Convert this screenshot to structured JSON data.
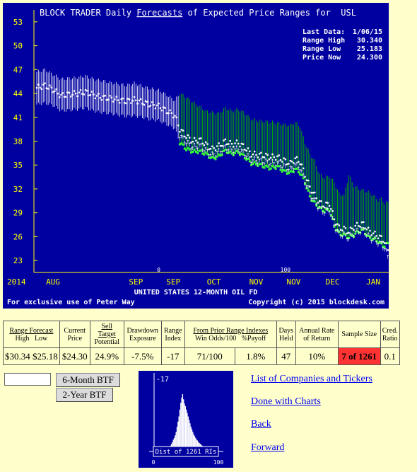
{
  "chart_data": [
    {
      "type": "range",
      "title_prefix": "BLOCK TRADER Daily ",
      "title_link": "Forecasts",
      "title_suffix": " of Expected Price Ranges for  USL",
      "xlabel": "UNITED STATES 12-MONTH OIL FD",
      "ylim": [
        21.5,
        54.5
      ],
      "yticks": [
        23,
        26,
        29,
        32,
        35,
        38,
        41,
        44,
        47,
        50,
        53
      ],
      "x_labels": [
        {
          "label": "2014",
          "x": 0
        },
        {
          "label": "AUG",
          "x": 10
        },
        {
          "label": "SEP",
          "x": 61
        },
        {
          "label": "SEP",
          "x": 84
        },
        {
          "label": "OCT",
          "x": 109
        },
        {
          "label": "NOV",
          "x": 135
        },
        {
          "label": "NOV",
          "x": 158
        },
        {
          "label": "DEC",
          "x": 182
        },
        {
          "label": "JAN",
          "x": 207
        }
      ],
      "volume_marks": [
        {
          "label": "0",
          "x": 75
        },
        {
          "label": "100",
          "x": 153
        }
      ],
      "info": {
        "last_data_label": "Last Data:",
        "last_data": "1/06/15",
        "high_label": "Range High",
        "high": "30.340",
        "low_label": "Range Low",
        "low": "25.183",
        "now_label": "Price Now",
        "now": "24.300"
      },
      "footer_left": "For exclusive use of Peter Way",
      "footer_right": "Copyright (c) 2015 blockdesk.com",
      "anchors": [
        [
          0,
          44.7,
          46.7,
          42.6
        ],
        [
          5,
          45.0,
          47.0,
          42.8
        ],
        [
          10,
          44.5,
          46.4,
          42.5
        ],
        [
          15,
          43.7,
          45.8,
          41.8
        ],
        [
          20,
          43.9,
          45.9,
          41.9
        ],
        [
          25,
          44.0,
          46.0,
          42.0
        ],
        [
          30,
          44.2,
          46.2,
          42.2
        ],
        [
          35,
          43.8,
          45.8,
          41.8
        ],
        [
          40,
          43.5,
          45.6,
          41.6
        ],
        [
          45,
          43.4,
          45.4,
          41.5
        ],
        [
          50,
          43.2,
          45.2,
          41.3
        ],
        [
          55,
          43.0,
          45.0,
          41.1
        ],
        [
          60,
          43.2,
          45.3,
          41.2
        ],
        [
          65,
          42.9,
          44.9,
          41.0
        ],
        [
          70,
          42.6,
          44.6,
          40.7
        ],
        [
          75,
          42.4,
          44.4,
          40.6
        ],
        [
          80,
          41.8,
          43.8,
          40.1
        ],
        [
          85,
          41.2,
          43.1,
          39.6
        ],
        [
          88,
          39.5,
          44.0,
          37.8
        ],
        [
          92,
          38.6,
          43.5,
          37.0
        ],
        [
          96,
          38.0,
          42.9,
          36.7
        ],
        [
          100,
          38.2,
          42.4,
          36.7
        ],
        [
          104,
          37.6,
          41.8,
          36.4
        ],
        [
          108,
          37.0,
          41.6,
          35.8
        ],
        [
          112,
          37.4,
          41.5,
          36.1
        ],
        [
          116,
          38.0,
          42.2,
          36.8
        ],
        [
          120,
          37.6,
          41.8,
          36.4
        ],
        [
          124,
          37.8,
          42.0,
          36.6
        ],
        [
          128,
          37.2,
          41.5,
          36.0
        ],
        [
          132,
          36.4,
          40.8,
          35.2
        ],
        [
          136,
          36.3,
          40.6,
          35.1
        ],
        [
          140,
          36.2,
          40.5,
          34.8
        ],
        [
          144,
          36.0,
          40.4,
          34.6
        ],
        [
          148,
          36.0,
          40.3,
          34.8
        ],
        [
          152,
          35.6,
          40.1,
          34.2
        ],
        [
          156,
          35.2,
          40.0,
          34.0
        ],
        [
          159,
          35.8,
          40.4,
          34.5
        ],
        [
          162,
          35.4,
          39.8,
          34.0
        ],
        [
          165,
          33.8,
          37.8,
          32.8
        ],
        [
          168,
          32.2,
          36.4,
          31.0
        ],
        [
          171,
          31.2,
          35.5,
          30.2
        ],
        [
          174,
          30.3,
          33.8,
          29.6
        ],
        [
          177,
          29.9,
          33.4,
          29.2
        ],
        [
          180,
          30.2,
          33.6,
          29.4
        ],
        [
          183,
          28.2,
          32.8,
          27.3
        ],
        [
          186,
          27.1,
          31.4,
          26.4
        ],
        [
          189,
          27.0,
          31.2,
          26.2
        ],
        [
          192,
          26.6,
          33.8,
          25.9
        ],
        [
          195,
          27.2,
          32.4,
          26.2
        ],
        [
          198,
          27.5,
          32.0,
          26.6
        ],
        [
          201,
          27.6,
          31.8,
          26.8
        ],
        [
          204,
          26.8,
          31.6,
          25.9
        ],
        [
          207,
          26.4,
          31.2,
          25.7
        ],
        [
          210,
          26.1,
          30.6,
          25.4
        ],
        [
          212,
          25.8,
          30.8,
          25.0
        ],
        [
          214,
          25.4,
          30.2,
          24.8
        ],
        [
          216,
          24.3,
          30.34,
          25.183
        ]
      ]
    },
    {
      "type": "histogram",
      "title": "Dist of 1261 RIs",
      "marker_label": "-17",
      "xlim": [
        0,
        100
      ],
      "x_tick_labels": [
        "0",
        "100"
      ],
      "values": [
        0,
        0,
        0,
        0,
        0,
        0,
        0,
        0,
        0,
        1,
        1,
        1,
        2,
        2,
        3,
        3,
        4,
        5,
        6,
        8,
        10,
        13,
        15,
        18,
        22,
        28,
        34,
        40,
        48,
        56,
        62,
        66,
        60,
        55,
        52,
        48,
        44,
        40,
        36,
        32,
        28,
        25,
        22,
        19,
        17,
        15,
        13,
        12,
        10,
        9,
        8,
        7,
        6,
        5,
        4,
        4,
        3,
        3,
        2,
        2,
        2,
        1,
        1,
        1,
        1,
        1,
        0,
        0,
        0,
        0
      ]
    }
  ],
  "table": {
    "headers": {
      "range_forecast": "Range Forecast",
      "high": "High",
      "low": "Low",
      "current_price_1": "Current",
      "current_price_2": "Price",
      "sell_target_1": "Sell Target",
      "sell_target_2": "Potential",
      "drawdown_1": "Drawdown",
      "drawdown_2": "Exposure",
      "range_index_1": "Range",
      "range_index_2": "Index",
      "prior_ranges": "From Prior Range Indexes",
      "win_odds": "Win Odds/100",
      "payoff": "%Payoff",
      "days_held_1": "Days",
      "days_held_2": "Held",
      "annual_rate_1": "Annual Rate",
      "annual_rate_2": "of Return",
      "sample_size": "Sample Size",
      "cred_1": "Cred.",
      "cred_2": "Ratio"
    },
    "values": {
      "high": "$30.34",
      "low": "$25.18",
      "current_price": "$24.30",
      "sell_target": "24.9%",
      "drawdown": "-7.5%",
      "range_index": "-17",
      "win_odds": "71/100",
      "payoff": "1.8%",
      "days_held": "47",
      "annual_rate": "10%",
      "sample_size": "7 of 1261",
      "cred_ratio": "0.1"
    },
    "colors": {
      "sample_size_bg": "#ff3333"
    }
  },
  "controls": {
    "ticker_value": "",
    "six_month_label": "6-Month BTF",
    "two_year_label": "2-Year BTF"
  },
  "links": {
    "list": "List of Companies and Tickers",
    "done": "Done with Charts",
    "back": "Back",
    "forward": "Forward"
  },
  "colors": {
    "chart_bg": "#0000a0",
    "forecast_range": "#00aa00",
    "forecast_low": "#33ff33",
    "price_mark": "#ffffff",
    "axis_text": "#ffff00",
    "page_bg": "#ffffcc"
  }
}
